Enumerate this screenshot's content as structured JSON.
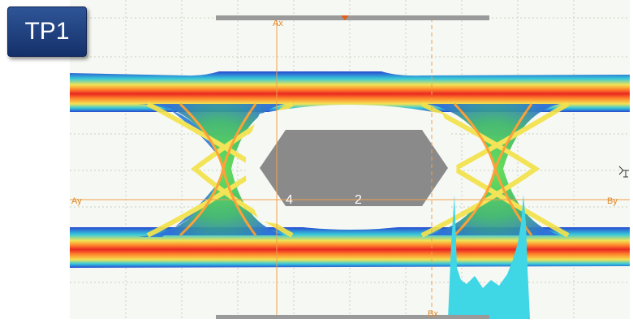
{
  "badge": {
    "label": "TP1"
  },
  "cursors": {
    "ax": "Ax",
    "bx": "Bx",
    "ay": "Ay",
    "by": "By"
  },
  "mask_labels": {
    "left": "4",
    "right": "2"
  },
  "colors": {
    "grid": "#c9d2c0",
    "cursor": "#f0a04b",
    "mask": "#8a8a8a",
    "histogram": "#3fd6e6",
    "scrollbar": "#9a9a9a",
    "marker": "#e0611f"
  },
  "icons": [
    "trigger-marker-icon",
    "ground-reference-icon"
  ]
}
